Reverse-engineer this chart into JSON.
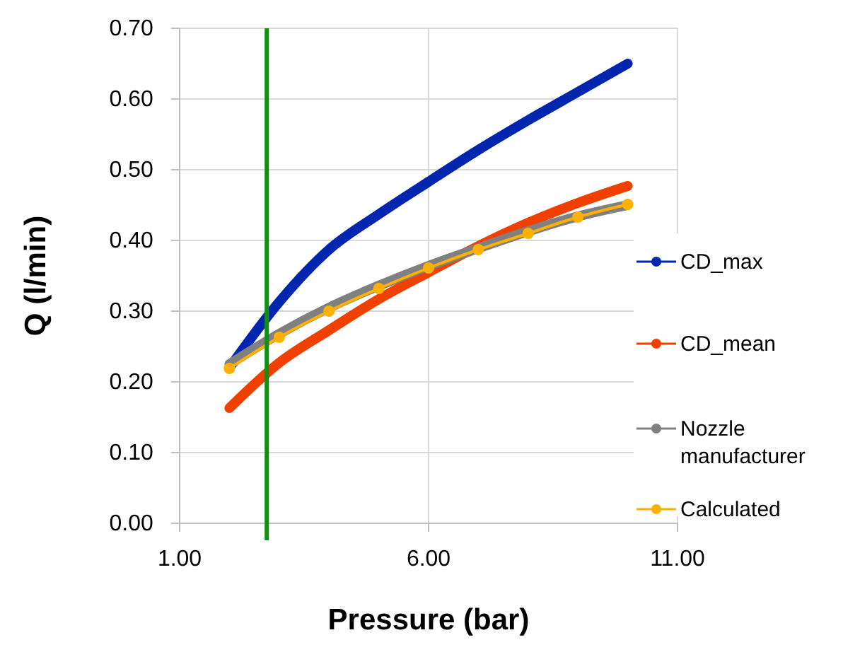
{
  "chart_data": {
    "type": "line",
    "xlabel": "Pressure (bar)",
    "ylabel": "Q (l/min)",
    "xlim": [
      1,
      11
    ],
    "xticks": [
      {
        "value": 1,
        "label": "1.00"
      },
      {
        "value": 6,
        "label": "6.00"
      },
      {
        "value": 11,
        "label": "11.00"
      }
    ],
    "ylim": [
      0,
      0.7
    ],
    "yticks": [
      {
        "value": 0,
        "label": "0.00"
      },
      {
        "value": 0.1,
        "label": "0.10"
      },
      {
        "value": 0.2,
        "label": "0.20"
      },
      {
        "value": 0.3,
        "label": "0.30"
      },
      {
        "value": 0.4,
        "label": "0.40"
      },
      {
        "value": 0.5,
        "label": "0.50"
      },
      {
        "value": 0.6,
        "label": "0.60"
      },
      {
        "value": 0.7,
        "label": "0.70"
      }
    ],
    "grid": true,
    "legend": "right",
    "x": [
      2,
      3,
      4,
      5,
      6,
      7,
      8,
      9,
      10
    ],
    "series": [
      {
        "name": "CD_max",
        "color": "#0026b0",
        "values": [
          0.22,
          0.313,
          0.387,
          0.437,
          0.483,
          0.528,
          0.57,
          0.61,
          0.65
        ],
        "marker": "none"
      },
      {
        "name": "CD_mean",
        "color": "#f04000",
        "values": [
          0.163,
          0.227,
          0.273,
          0.317,
          0.355,
          0.392,
          0.425,
          0.453,
          0.477
        ],
        "marker": "none"
      },
      {
        "name": "Nozzle manufacturer",
        "color": "#808080",
        "values": [
          0.225,
          0.268,
          0.305,
          0.336,
          0.364,
          0.389,
          0.413,
          0.434,
          0.45
        ],
        "marker": "none"
      },
      {
        "name": "Calculated",
        "color": "#ffb000",
        "values": [
          0.219,
          0.263,
          0.3,
          0.332,
          0.361,
          0.387,
          0.41,
          0.433,
          0.451
        ],
        "marker": "circle"
      }
    ],
    "ref_lines": [
      {
        "axis": "x",
        "value": 2.75,
        "color": "#109010"
      }
    ]
  }
}
